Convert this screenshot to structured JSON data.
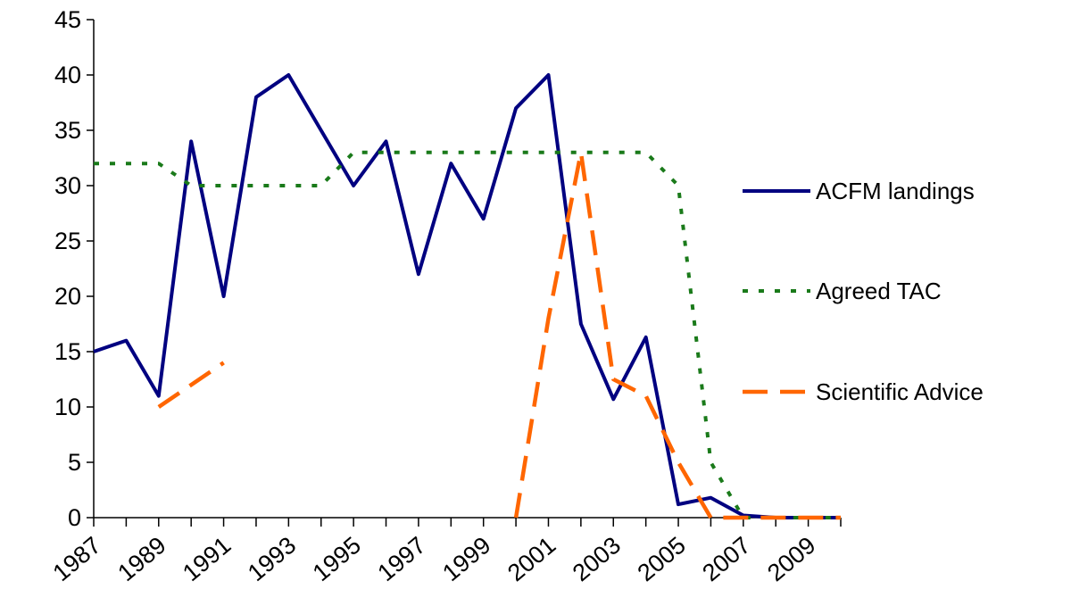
{
  "chart_data": {
    "type": "line",
    "title": "",
    "xlabel": "",
    "ylabel": "",
    "xlim": [
      1987,
      2010
    ],
    "ylim": [
      0,
      45
    ],
    "yticks": [
      0,
      5,
      10,
      15,
      20,
      25,
      30,
      35,
      40,
      45
    ],
    "xtick_labels": [
      "1987",
      "1989",
      "1991",
      "1993",
      "1995",
      "1997",
      "1999",
      "2001",
      "2003",
      "2005",
      "2007",
      "2009"
    ],
    "grid": false,
    "legend_position": "right",
    "series": [
      {
        "name": "ACFM landings",
        "color": "#000080",
        "style": "solid",
        "points": [
          [
            1987,
            15
          ],
          [
            1988,
            16
          ],
          [
            1989,
            11
          ],
          [
            1990,
            34
          ],
          [
            1991,
            20
          ],
          [
            1992,
            38
          ],
          [
            1993,
            40
          ],
          [
            1994,
            35
          ],
          [
            1995,
            30
          ],
          [
            1996,
            34
          ],
          [
            1997,
            22
          ],
          [
            1998,
            32
          ],
          [
            1999,
            27
          ],
          [
            2000,
            37
          ],
          [
            2001,
            40
          ],
          [
            2002,
            17.5
          ],
          [
            2003,
            10.7
          ],
          [
            2004,
            16.3
          ],
          [
            2005,
            1.2
          ],
          [
            2006,
            1.8
          ],
          [
            2007,
            0.2
          ],
          [
            2008,
            0
          ],
          [
            2009,
            0
          ],
          [
            2010,
            0
          ]
        ]
      },
      {
        "name": "Agreed TAC",
        "color": "#1a7a1a",
        "style": "dotted",
        "points": [
          [
            1987,
            32
          ],
          [
            1988,
            32
          ],
          [
            1989,
            32
          ],
          [
            1990,
            30
          ],
          [
            1991,
            30
          ],
          [
            1992,
            30
          ],
          [
            1993,
            30
          ],
          [
            1994,
            30
          ],
          [
            1995,
            33
          ],
          [
            1996,
            33
          ],
          [
            1997,
            33
          ],
          [
            1998,
            33
          ],
          [
            1999,
            33
          ],
          [
            2000,
            33
          ],
          [
            2001,
            33
          ],
          [
            2002,
            33
          ],
          [
            2003,
            33
          ],
          [
            2004,
            33
          ],
          [
            2005,
            30
          ],
          [
            2006,
            5
          ],
          [
            2007,
            0
          ],
          [
            2008,
            0
          ],
          [
            2009,
            0
          ],
          [
            2010,
            0
          ]
        ]
      },
      {
        "name": "Scientific Advice",
        "color": "#ff6600",
        "style": "dashed",
        "segments": [
          [
            [
              1989,
              10
            ],
            [
              1991,
              14
            ]
          ],
          [
            [
              2000,
              0
            ],
            [
              2001,
              18
            ],
            [
              2002,
              33
            ],
            [
              2003,
              12.5
            ],
            [
              2004,
              11
            ],
            [
              2005,
              5
            ],
            [
              2006,
              0
            ],
            [
              2007,
              0
            ],
            [
              2008,
              0
            ],
            [
              2009,
              0
            ],
            [
              2010,
              0
            ]
          ]
        ]
      }
    ]
  }
}
